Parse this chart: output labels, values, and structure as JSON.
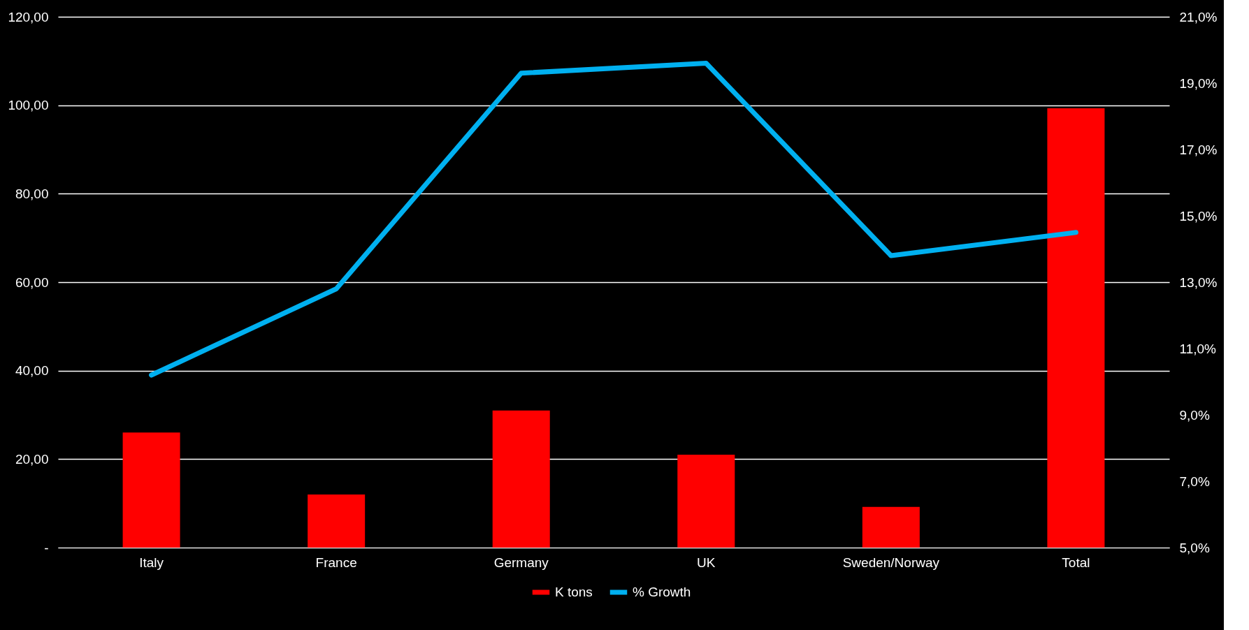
{
  "chart_data": {
    "type": "bar",
    "categories": [
      "Italy",
      "France",
      "Germany",
      "UK",
      "Sweden/Norway",
      "Total"
    ],
    "series": [
      {
        "name": "K tons",
        "color": "#ff0000",
        "values": [
          26,
          12,
          31,
          21,
          9.2,
          99.3
        ]
      },
      {
        "name": "% Growth",
        "type": "line",
        "axis": "y2",
        "color": "#00b0f0",
        "values": [
          10.2,
          12.8,
          19.3,
          19.6,
          13.8,
          14.5
        ]
      }
    ],
    "ylim": [
      0,
      120
    ],
    "yticks": [
      {
        "value": 0,
        "label": "-"
      },
      {
        "value": 20,
        "label": "20,00"
      },
      {
        "value": 40,
        "label": "40,00"
      },
      {
        "value": 60,
        "label": "60,00"
      },
      {
        "value": 80,
        "label": "80,00"
      },
      {
        "value": 100,
        "label": "100,00"
      },
      {
        "value": 120,
        "label": "120,00"
      }
    ],
    "y2lim": [
      5,
      21
    ],
    "y2ticks": [
      {
        "value": 5,
        "label": "5,0%"
      },
      {
        "value": 7,
        "label": "7,0%"
      },
      {
        "value": 9,
        "label": "9,0%"
      },
      {
        "value": 11,
        "label": "11,0%"
      },
      {
        "value": 13,
        "label": "13,0%"
      },
      {
        "value": 15,
        "label": "15,0%"
      },
      {
        "value": 17,
        "label": "17,0%"
      },
      {
        "value": 19,
        "label": "19,0%"
      },
      {
        "value": 21,
        "label": "21,0%"
      }
    ],
    "grid": "y",
    "legend": "bottom"
  }
}
